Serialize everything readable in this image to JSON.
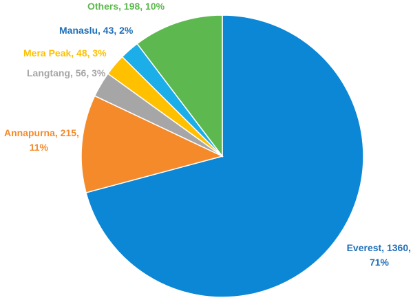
{
  "chart_data": {
    "type": "pie",
    "title": "",
    "start_angle_deg": 0,
    "direction": "clockwise",
    "slices": [
      {
        "name": "Everest",
        "value": 1360,
        "percent": "71%",
        "label_line1": "Everest, 1360,",
        "label_line2": "71%",
        "color": "#0B87D6"
      },
      {
        "name": "Annapurna",
        "value": 215,
        "percent": "11%",
        "label_line1": "Annapurna, 215,",
        "label_line2": "11%",
        "color": "#F58A2B"
      },
      {
        "name": "Langtang",
        "value": 56,
        "percent": "3%",
        "label_line1": "Langtang, 56, 3%",
        "label_line2": "",
        "color": "#A6A6A6"
      },
      {
        "name": "Mera Peak",
        "value": 48,
        "percent": "3%",
        "label_line1": "Mera Peak, 48, 3%",
        "label_line2": "",
        "color": "#FFC000"
      },
      {
        "name": "Manaslu",
        "value": 43,
        "percent": "2%",
        "label_line1": "Manaslu, 43, 2%",
        "label_line2": "",
        "color": "#1BAEE8"
      },
      {
        "name": "Others",
        "value": 198,
        "percent": "10%",
        "label_line1": "Others, 198, 10%",
        "label_line2": "",
        "color": "#5DB84F"
      }
    ],
    "label_colors": {
      "Everest": "#1F6FB7",
      "Annapurna": "#F58A2B",
      "Langtang": "#A6A6A6",
      "Mera Peak": "#FFC000",
      "Manaslu": "#1F6FB7",
      "Others": "#5DB84F"
    }
  }
}
